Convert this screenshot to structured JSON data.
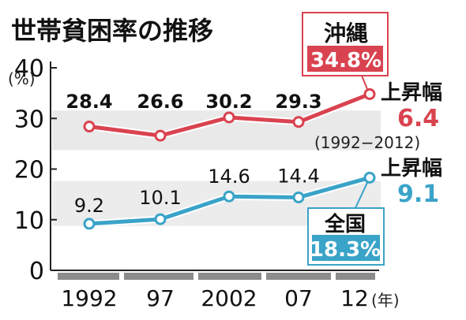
{
  "chart_data": {
    "type": "line",
    "title": "世帯貧困率の推移",
    "yunit": "(%)",
    "xunit": "(年)",
    "ylim": [
      0,
      40
    ],
    "yticks": [
      0,
      10,
      20,
      30,
      40
    ],
    "categories": [
      "1992",
      "97",
      "2002",
      "07",
      "12"
    ],
    "series": [
      {
        "name": "沖縄",
        "values": [
          28.4,
          26.6,
          30.2,
          29.3,
          34.8
        ],
        "value_labels": [
          "28.4",
          "26.6",
          "30.2",
          "29.3"
        ],
        "final_label": "34.8%",
        "rise_label": "上昇幅",
        "rise_value": "6.4",
        "color": "#d9434f"
      },
      {
        "name": "全国",
        "values": [
          9.2,
          10.1,
          14.6,
          14.4,
          18.3
        ],
        "value_labels": [
          "9.2",
          "10.1",
          "14.6",
          "14.4"
        ],
        "final_label": "18.3%",
        "rise_label": "上昇幅",
        "rise_value": "9.1",
        "color": "#3aa3c8"
      }
    ],
    "period_note": "(1992−2012)",
    "grid": false
  }
}
